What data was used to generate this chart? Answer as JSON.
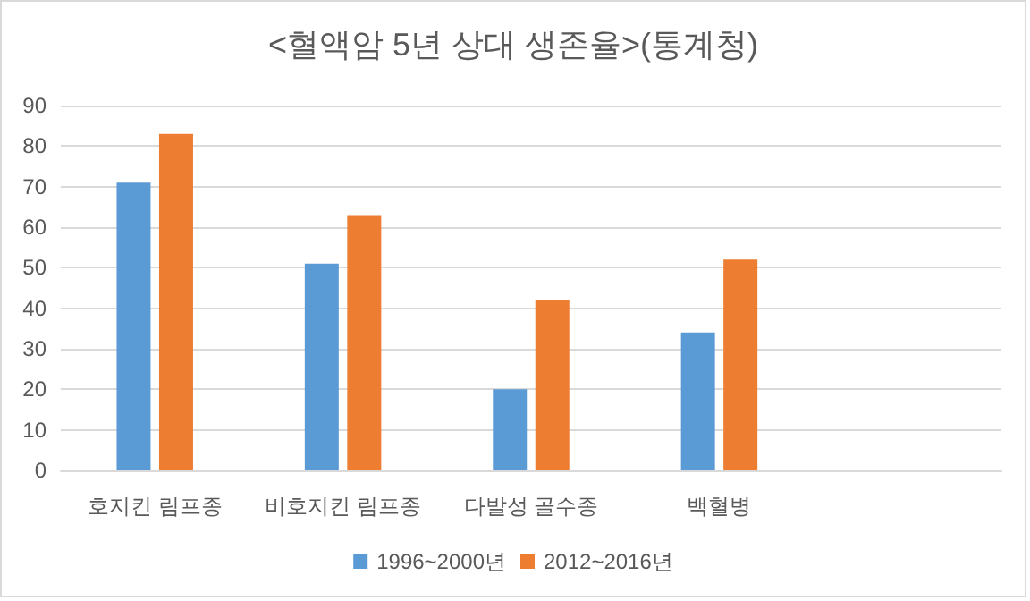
{
  "chart_data": {
    "type": "bar",
    "title": "<혈액암 5년 상대 생존율>(통계청)",
    "categories": [
      "호지킨 림프종",
      "비호지킨 림프종",
      "다발성 골수종",
      "백혈병",
      null
    ],
    "series": [
      {
        "name": "1996~2000년",
        "color": "#5b9bd5",
        "values": [
          71,
          51,
          20,
          34,
          null
        ]
      },
      {
        "name": "2012~2016년",
        "color": "#ed7d31",
        "values": [
          83,
          63,
          42,
          52,
          null
        ]
      }
    ],
    "ylim": [
      0,
      90
    ],
    "yticks": [
      0,
      10,
      20,
      30,
      40,
      50,
      60,
      70,
      80,
      90
    ],
    "grid": "y",
    "legend": "bottom"
  }
}
